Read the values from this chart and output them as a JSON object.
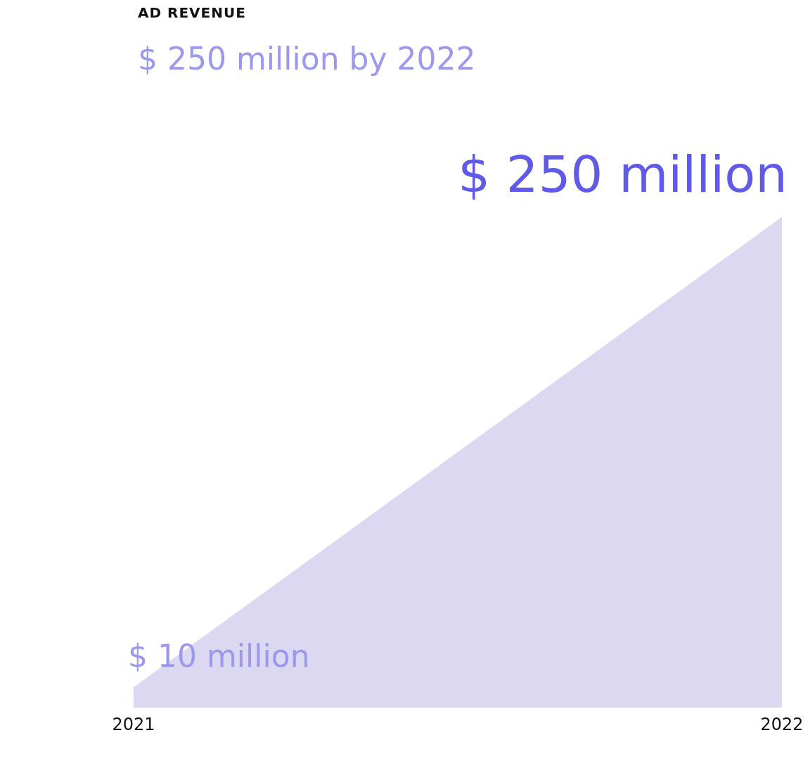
{
  "chart_data": {
    "type": "area",
    "title": "AD REVENUE",
    "subtitle": "$ 250 million by 2022",
    "categories": [
      "2021",
      "2022"
    ],
    "series": [
      {
        "color": "#dcd8f2",
        "values": [
          10,
          250
        ],
        "value_labels": [
          "$ 10 million",
          "$ 250 million"
        ]
      }
    ],
    "tick_labels": "x",
    "grid": false,
    "legend": false
  }
}
